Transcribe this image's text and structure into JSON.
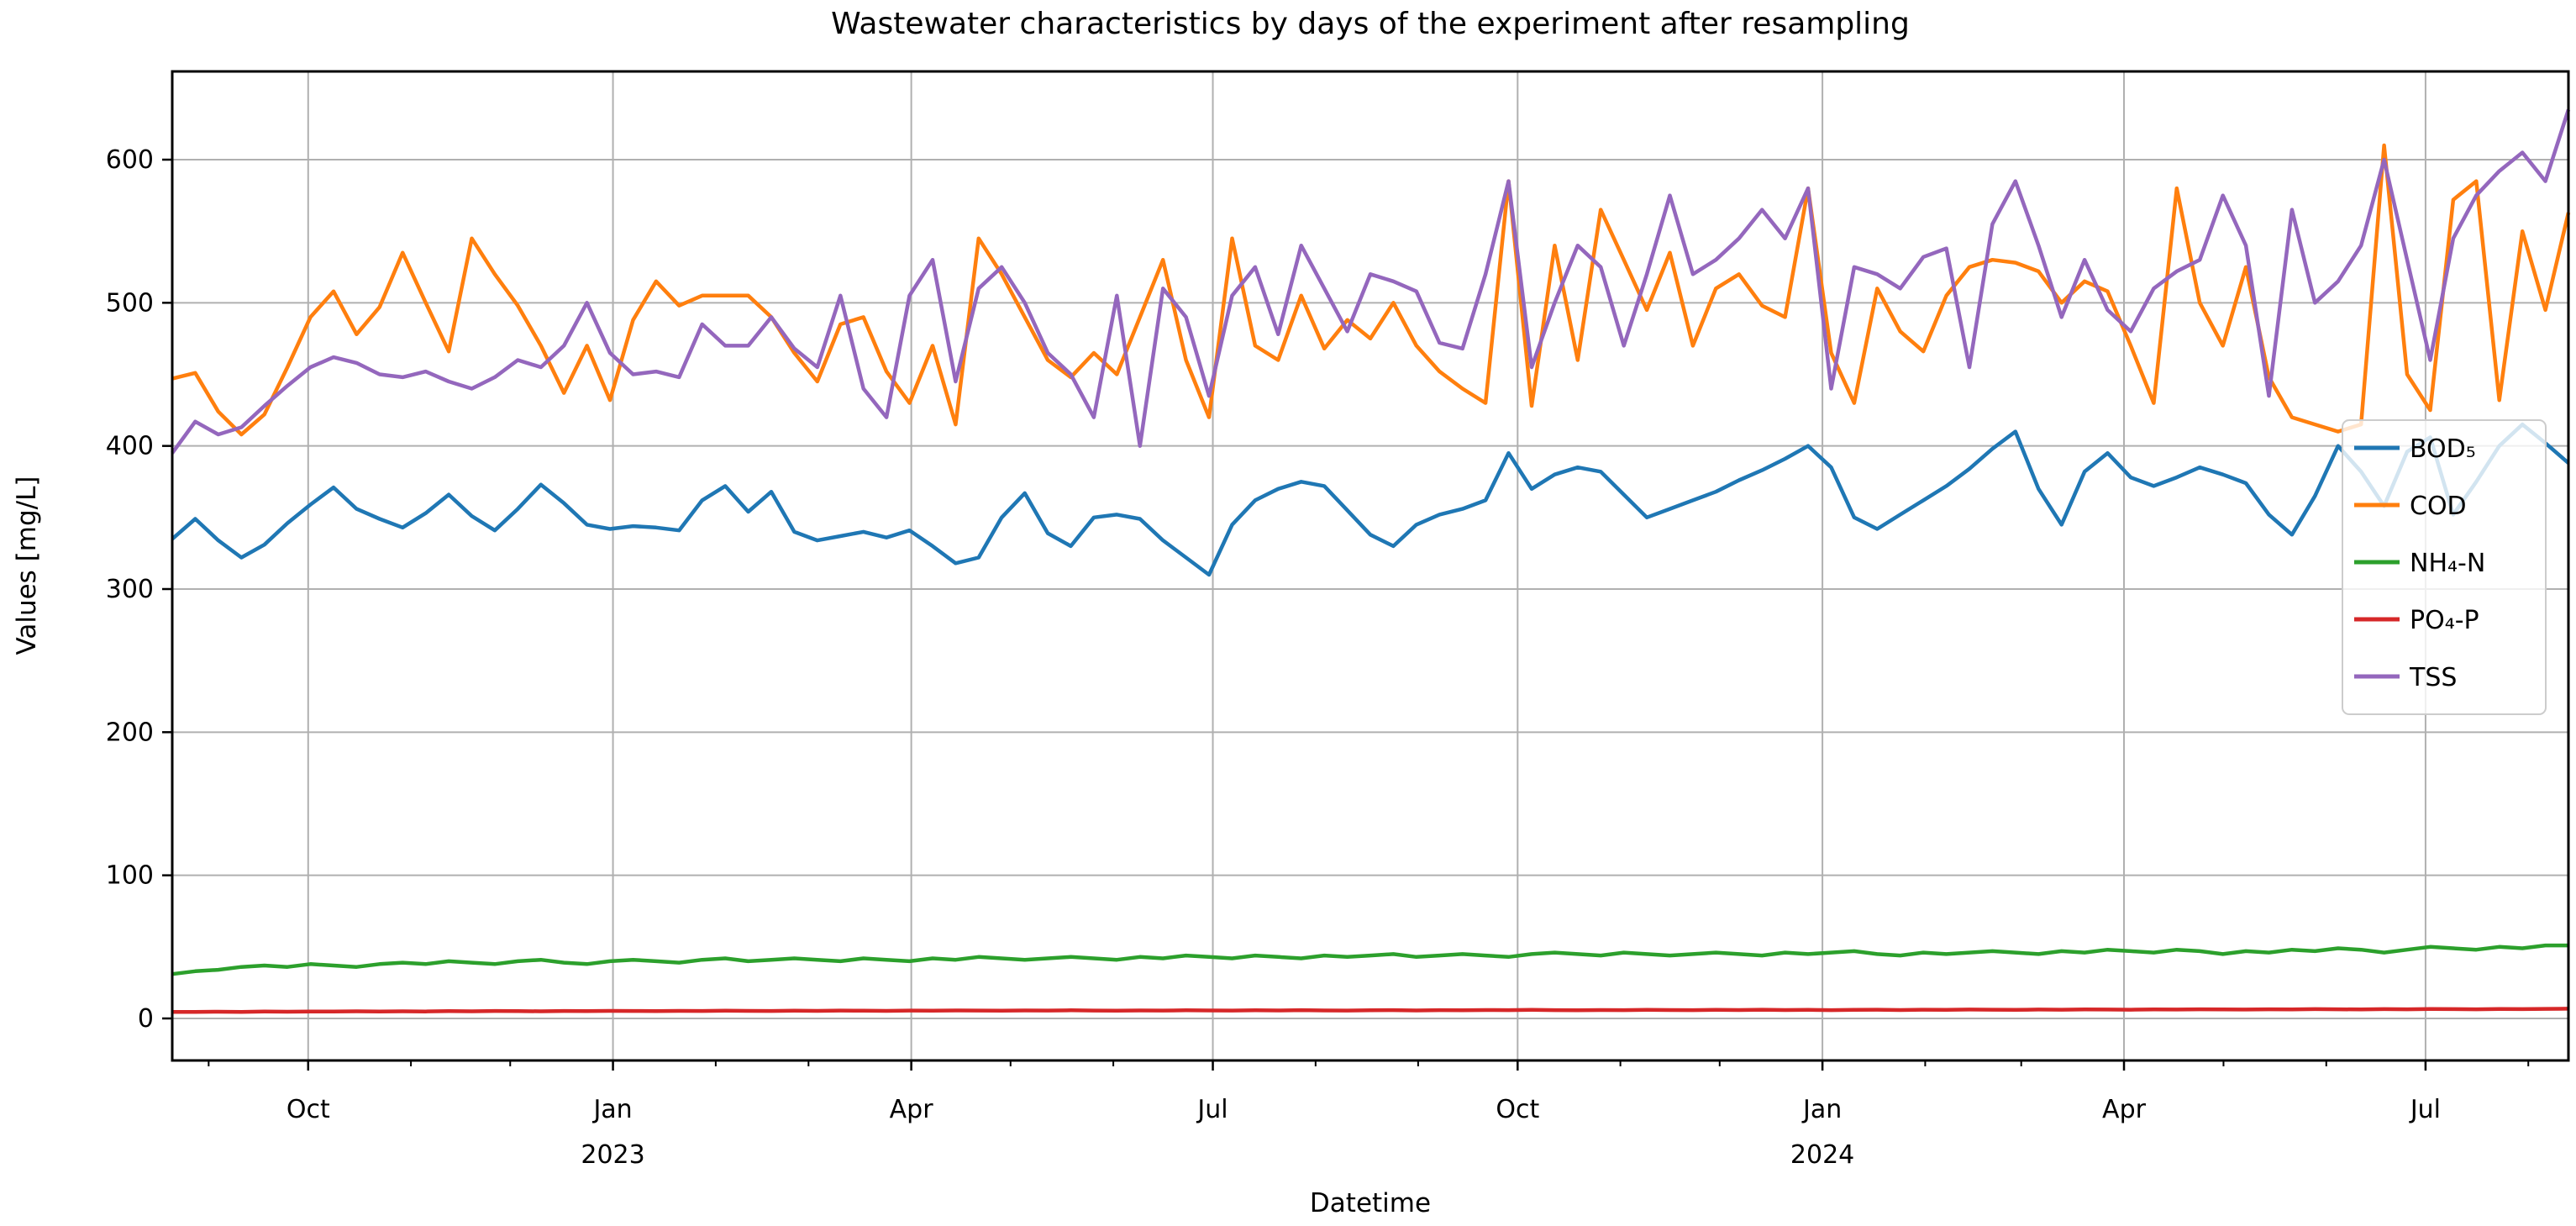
{
  "figure": {
    "title": "Wastewater characteristics by days of the experiment after resampling",
    "xlabel": "Datetime",
    "ylabel": "Values [mg/L]"
  },
  "chart_data": {
    "type": "line",
    "title": "Wastewater characteristics by days of the experiment after resampling",
    "xlabel": "Datetime",
    "ylabel": "Values [mg/L]",
    "x_description": "weekly resampled datetime axis from late Aug 2022 to mid Aug 2024",
    "n_points": 105,
    "ylim": [
      -29,
      661
    ],
    "yticks": [
      0,
      100,
      200,
      300,
      400,
      500,
      600
    ],
    "grid": true,
    "grid_color": "#b0b0b0",
    "legend_position": "center right",
    "x_major_ticks": [
      {
        "label": "Oct",
        "year": "",
        "week": 5.86
      },
      {
        "label": "Jan",
        "year": "2023",
        "week": 19.0
      },
      {
        "label": "Apr",
        "year": "",
        "week": 31.86
      },
      {
        "label": "Jul",
        "year": "",
        "week": 44.86
      },
      {
        "label": "Oct",
        "year": "",
        "week": 58.0
      },
      {
        "label": "Jan",
        "year": "2024",
        "week": 71.14
      },
      {
        "label": "Apr",
        "year": "",
        "week": 84.14
      },
      {
        "label": "Jul",
        "year": "",
        "week": 97.14
      }
    ],
    "x_minor_tick_weeks": [
      1.57,
      5.86,
      10.29,
      14.57,
      19.0,
      23.43,
      27.43,
      31.86,
      36.14,
      40.57,
      44.86,
      49.29,
      53.71,
      58.0,
      62.43,
      66.71,
      71.14,
      75.57,
      79.71,
      84.14,
      88.43,
      92.86,
      97.14,
      101.57
    ],
    "series": [
      {
        "name": "BOD₅",
        "color": "#1f77b4",
        "values": [
          335,
          349,
          334,
          322,
          331,
          346,
          359,
          371,
          356,
          349,
          343,
          353,
          366,
          351,
          341,
          356,
          373,
          360,
          345,
          342,
          344,
          343,
          341,
          362,
          372,
          354,
          368,
          340,
          334,
          337,
          340,
          336,
          341,
          330,
          318,
          322,
          350,
          367,
          339,
          330,
          350,
          352,
          349,
          334,
          322,
          310,
          345,
          362,
          370,
          375,
          372,
          355,
          338,
          330,
          345,
          352,
          356,
          362,
          395,
          370,
          380,
          385,
          382,
          366,
          350,
          356,
          362,
          368,
          376,
          383,
          391,
          400,
          385,
          350,
          342,
          352,
          362,
          372,
          384,
          398,
          410,
          370,
          345,
          382,
          395,
          378,
          372,
          378,
          385,
          380,
          374,
          352,
          338,
          365,
          400,
          382,
          358,
          396,
          406,
          352,
          375,
          400,
          415,
          402,
          388
        ]
      },
      {
        "name": "COD",
        "color": "#ff7f0e",
        "values": [
          447,
          451,
          424,
          408,
          422,
          455,
          490,
          508,
          478,
          497,
          535,
          500,
          466,
          545,
          520,
          498,
          470,
          437,
          470,
          432,
          488,
          515,
          498,
          505,
          505,
          505,
          490,
          465,
          445,
          485,
          490,
          452,
          430,
          470,
          415,
          545,
          520,
          490,
          460,
          448,
          465,
          450,
          490,
          530,
          460,
          420,
          545,
          470,
          460,
          505,
          468,
          488,
          475,
          500,
          470,
          452,
          440,
          430,
          585,
          428,
          540,
          460,
          565,
          530,
          495,
          535,
          470,
          510,
          520,
          498,
          490,
          580,
          465,
          430,
          510,
          480,
          466,
          505,
          525,
          530,
          528,
          522,
          500,
          515,
          508,
          470,
          430,
          580,
          500,
          470,
          525,
          448,
          420,
          415,
          410,
          415,
          610,
          450,
          425,
          572,
          585,
          432,
          550,
          495,
          563
        ]
      },
      {
        "name": "NH₄-N",
        "color": "#2ca02c",
        "values": [
          31,
          33,
          34,
          36,
          37,
          36,
          38,
          37,
          36,
          38,
          39,
          38,
          40,
          39,
          38,
          40,
          41,
          39,
          38,
          40,
          41,
          40,
          39,
          41,
          42,
          40,
          41,
          42,
          41,
          40,
          42,
          41,
          40,
          42,
          41,
          43,
          42,
          41,
          42,
          43,
          42,
          41,
          43,
          42,
          44,
          43,
          42,
          44,
          43,
          42,
          44,
          43,
          44,
          45,
          43,
          44,
          45,
          44,
          43,
          45,
          46,
          45,
          44,
          46,
          45,
          44,
          45,
          46,
          45,
          44,
          46,
          45,
          46,
          47,
          45,
          44,
          46,
          45,
          46,
          47,
          46,
          45,
          47,
          46,
          48,
          47,
          46,
          48,
          47,
          45,
          47,
          46,
          48,
          47,
          49,
          48,
          46,
          48,
          50,
          49,
          48,
          50,
          49,
          51,
          51
        ]
      },
      {
        "name": "PO₄-P",
        "color": "#d62728",
        "values": [
          4.5,
          4.6,
          4.7,
          4.6,
          4.8,
          4.7,
          4.9,
          4.8,
          5.0,
          4.9,
          5.0,
          4.9,
          5.1,
          5.0,
          5.2,
          5.1,
          5.0,
          5.2,
          5.1,
          5.3,
          5.2,
          5.1,
          5.3,
          5.2,
          5.4,
          5.3,
          5.2,
          5.4,
          5.3,
          5.5,
          5.4,
          5.3,
          5.5,
          5.4,
          5.6,
          5.5,
          5.4,
          5.6,
          5.5,
          5.7,
          5.5,
          5.4,
          5.6,
          5.5,
          5.7,
          5.6,
          5.5,
          5.7,
          5.6,
          5.8,
          5.6,
          5.5,
          5.7,
          5.8,
          5.6,
          5.8,
          5.7,
          5.9,
          5.8,
          6.0,
          5.8,
          5.7,
          5.9,
          5.8,
          6.0,
          5.9,
          5.8,
          6.0,
          5.9,
          6.1,
          5.9,
          6.0,
          5.8,
          6.0,
          6.1,
          5.9,
          6.1,
          6.0,
          6.2,
          6.1,
          6.0,
          6.2,
          6.1,
          6.3,
          6.2,
          6.1,
          6.3,
          6.2,
          6.4,
          6.3,
          6.2,
          6.4,
          6.3,
          6.5,
          6.4,
          6.3,
          6.5,
          6.4,
          6.6,
          6.5,
          6.4,
          6.6,
          6.5,
          6.7,
          6.8
        ]
      },
      {
        "name": "TSS",
        "color": "#9467bd",
        "values": [
          395,
          417,
          408,
          413,
          428,
          442,
          455,
          462,
          458,
          450,
          448,
          452,
          445,
          440,
          448,
          460,
          455,
          470,
          500,
          465,
          450,
          452,
          448,
          485,
          470,
          470,
          490,
          468,
          455,
          505,
          440,
          420,
          505,
          530,
          445,
          510,
          525,
          500,
          465,
          450,
          420,
          505,
          400,
          510,
          490,
          435,
          505,
          525,
          478,
          540,
          510,
          480,
          520,
          515,
          508,
          472,
          468,
          520,
          585,
          455,
          500,
          540,
          525,
          470,
          520,
          575,
          520,
          530,
          545,
          565,
          545,
          580,
          440,
          525,
          520,
          510,
          532,
          538,
          455,
          555,
          585,
          540,
          490,
          530,
          495,
          480,
          510,
          522,
          530,
          575,
          540,
          435,
          565,
          500,
          515,
          540,
          600,
          530,
          460,
          545,
          575,
          592,
          605,
          585,
          635
        ]
      }
    ]
  },
  "legend": {
    "items": [
      {
        "label": "BOD₅",
        "color": "#1f77b4"
      },
      {
        "label": "COD",
        "color": "#ff7f0e"
      },
      {
        "label": "NH₄-N",
        "color": "#2ca02c"
      },
      {
        "label": "PO₄-P",
        "color": "#d62728"
      },
      {
        "label": "TSS",
        "color": "#9467bd"
      }
    ]
  },
  "colors": {
    "background": "#ffffff",
    "grid": "#b0b0b0",
    "spine": "#000000",
    "legend_border": "#cccccc"
  }
}
